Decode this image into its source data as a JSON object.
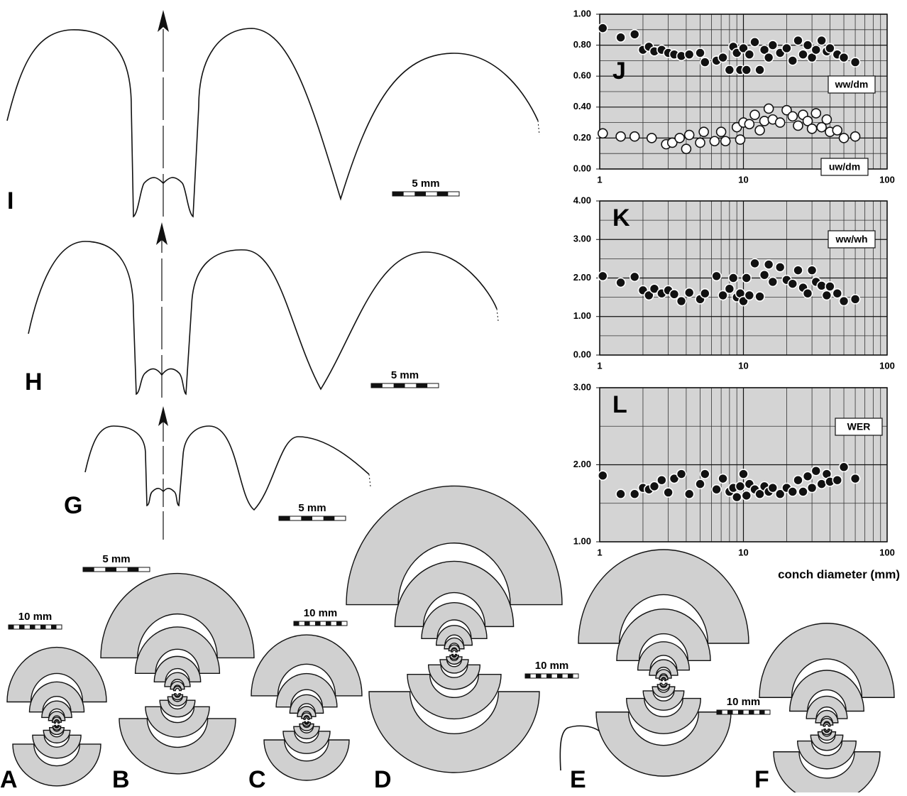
{
  "chart_data": [
    {
      "type": "scatter",
      "title": "J",
      "log_x": true,
      "grid": true,
      "xlim": [
        1,
        100
      ],
      "xticks": [
        1,
        10,
        100
      ],
      "ylim": [
        0,
        1
      ],
      "yticks": [
        {
          "value": 0,
          "label": "0.00"
        },
        {
          "value": 0.2,
          "label": "0.20"
        },
        {
          "value": 0.4,
          "label": "0.40"
        },
        {
          "value": 0.6,
          "label": "0.60"
        },
        {
          "value": 0.8,
          "label": "0.80"
        },
        {
          "value": 1,
          "label": "1.00"
        }
      ],
      "series": [
        {
          "name": "ww/dm",
          "color": "#111111",
          "x": [
            1.05,
            1.4,
            1.75,
            2,
            2.2,
            2.4,
            2.7,
            3,
            3.3,
            3.7,
            4.2,
            5,
            5.4,
            6.5,
            7.2,
            8,
            8.5,
            9,
            9.5,
            10,
            10.5,
            11,
            12,
            13,
            14,
            15,
            16,
            18,
            20,
            22,
            24,
            26,
            28,
            30,
            32,
            35,
            38,
            40,
            45,
            50,
            60
          ],
          "values": [
            0.91,
            0.85,
            0.87,
            0.77,
            0.79,
            0.76,
            0.77,
            0.75,
            0.74,
            0.73,
            0.74,
            0.75,
            0.69,
            0.7,
            0.72,
            0.64,
            0.79,
            0.75,
            0.64,
            0.78,
            0.64,
            0.74,
            0.82,
            0.64,
            0.77,
            0.72,
            0.8,
            0.75,
            0.78,
            0.7,
            0.83,
            0.74,
            0.8,
            0.72,
            0.77,
            0.83,
            0.76,
            0.78,
            0.74,
            0.72,
            0.69
          ]
        },
        {
          "name": "uw/dm",
          "color": "#ffffff",
          "x": [
            1.05,
            1.4,
            1.75,
            2.3,
            2.9,
            3.2,
            3.6,
            4,
            4.2,
            5,
            5.3,
            6.3,
            7,
            7.5,
            9,
            9.5,
            10,
            11,
            12,
            13,
            14,
            15,
            16,
            18,
            20,
            22,
            24,
            26,
            28,
            30,
            32,
            35,
            38,
            40,
            45,
            50,
            60
          ],
          "values": [
            0.23,
            0.21,
            0.21,
            0.2,
            0.16,
            0.17,
            0.2,
            0.13,
            0.22,
            0.17,
            0.24,
            0.18,
            0.24,
            0.18,
            0.27,
            0.19,
            0.3,
            0.29,
            0.35,
            0.25,
            0.31,
            0.39,
            0.32,
            0.3,
            0.38,
            0.34,
            0.28,
            0.35,
            0.31,
            0.26,
            0.36,
            0.27,
            0.32,
            0.24,
            0.25,
            0.2,
            0.21
          ]
        }
      ]
    },
    {
      "type": "scatter",
      "title": "K",
      "log_x": true,
      "grid": true,
      "xlim": [
        1,
        100
      ],
      "xticks": [
        1,
        10,
        100
      ],
      "ylim": [
        0,
        4
      ],
      "yticks": [
        {
          "value": 0,
          "label": "0.00"
        },
        {
          "value": 1,
          "label": "1.00"
        },
        {
          "value": 2,
          "label": "2.00"
        },
        {
          "value": 3,
          "label": "3.00"
        },
        {
          "value": 4,
          "label": "4.00"
        }
      ],
      "series": [
        {
          "name": "ww/wh",
          "color": "#111111",
          "x": [
            1.05,
            1.4,
            1.75,
            2,
            2.2,
            2.4,
            2.7,
            3,
            3.3,
            3.7,
            4.2,
            5,
            5.4,
            6.5,
            7.2,
            8,
            8.5,
            9,
            9.5,
            10,
            10.5,
            11,
            12,
            13,
            14,
            15,
            16,
            18,
            20,
            22,
            24,
            26,
            28,
            30,
            32,
            35,
            38,
            40,
            45,
            50,
            60
          ],
          "values": [
            2.05,
            1.88,
            2.03,
            1.68,
            1.55,
            1.72,
            1.6,
            1.68,
            1.58,
            1.4,
            1.62,
            1.45,
            1.6,
            2.05,
            1.55,
            1.72,
            2.0,
            1.5,
            1.6,
            1.4,
            2.0,
            1.55,
            2.38,
            1.52,
            2.08,
            2.35,
            1.9,
            2.28,
            1.95,
            1.85,
            2.2,
            1.75,
            1.6,
            2.2,
            1.9,
            1.8,
            1.55,
            1.78,
            1.6,
            1.4,
            1.45
          ]
        }
      ]
    },
    {
      "type": "scatter",
      "title": "L",
      "log_x": true,
      "grid": true,
      "xlim": [
        1,
        100
      ],
      "xticks": [
        1,
        10,
        100
      ],
      "ylim": [
        1,
        3
      ],
      "x_label": "conch diameter (mm)",
      "yticks": [
        {
          "value": 1,
          "label": "1.00"
        },
        {
          "value": 2,
          "label": "2.00"
        },
        {
          "value": 3,
          "label": "3.00"
        }
      ],
      "series": [
        {
          "name": "WER",
          "color": "#111111",
          "x": [
            1.05,
            1.4,
            1.75,
            2,
            2.2,
            2.4,
            2.7,
            3,
            3.3,
            3.7,
            4.2,
            5,
            5.4,
            6.5,
            7.2,
            8,
            8.5,
            9,
            9.5,
            10,
            10.5,
            11,
            12,
            13,
            14,
            15,
            16,
            18,
            20,
            22,
            24,
            26,
            28,
            30,
            32,
            35,
            38,
            40,
            45,
            50,
            60
          ],
          "values": [
            1.86,
            1.62,
            1.62,
            1.7,
            1.68,
            1.72,
            1.8,
            1.64,
            1.82,
            1.88,
            1.62,
            1.75,
            1.88,
            1.68,
            1.82,
            1.65,
            1.7,
            1.58,
            1.72,
            1.88,
            1.6,
            1.75,
            1.68,
            1.62,
            1.72,
            1.65,
            1.7,
            1.62,
            1.7,
            1.65,
            1.8,
            1.65,
            1.85,
            1.7,
            1.92,
            1.75,
            1.88,
            1.78,
            1.8,
            1.97,
            1.82
          ]
        }
      ]
    }
  ],
  "drawings": {
    "panels": [
      "I",
      "H",
      "G",
      "A",
      "B",
      "C",
      "D",
      "E",
      "F"
    ],
    "scale_bars": [
      "5 mm",
      "5 mm",
      "5 mm",
      "5 mm",
      "10 mm",
      "10 mm",
      "10 mm",
      "10 mm"
    ]
  }
}
